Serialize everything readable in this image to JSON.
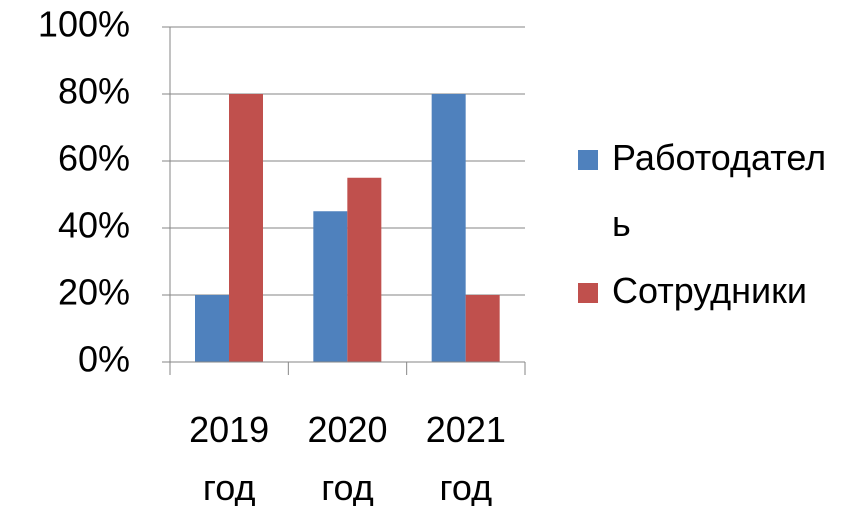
{
  "chart_data": {
    "type": "bar",
    "categories": [
      "2019 год",
      "2020 год",
      "2021 год"
    ],
    "series": [
      {
        "name": "Работодатель",
        "color": "#4f81bd",
        "values": [
          20,
          45,
          80
        ]
      },
      {
        "name": "Сотрудники",
        "color": "#c0504d",
        "values": [
          80,
          55,
          20
        ]
      }
    ],
    "ylim": [
      0,
      100
    ],
    "yticks": [
      {
        "value": 0,
        "label": "0%"
      },
      {
        "value": 20,
        "label": "20%"
      },
      {
        "value": 40,
        "label": "40%"
      },
      {
        "value": 60,
        "label": "60%"
      },
      {
        "value": 80,
        "label": "80%"
      },
      {
        "value": 100,
        "label": "100%"
      }
    ],
    "grid": true,
    "legend": "right"
  }
}
